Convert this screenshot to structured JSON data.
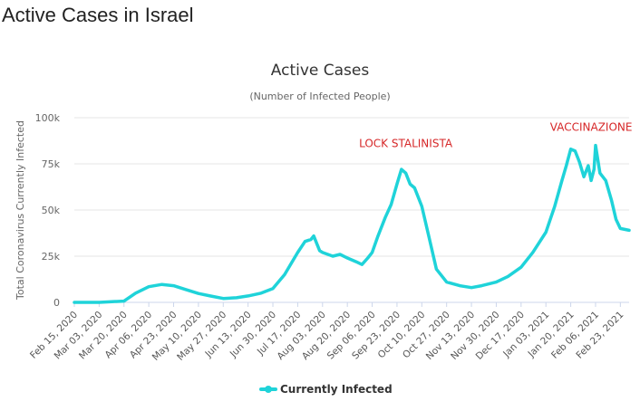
{
  "page": {
    "title": "Active Cases in Israel"
  },
  "chart_data": {
    "type": "line",
    "title": "Active Cases",
    "subtitle": "(Number of Infected People)",
    "xlabel": "",
    "ylabel": "Total Coronavirus Currently Infected",
    "ylim": [
      0,
      100000
    ],
    "y_ticks": [
      0,
      25000,
      50000,
      75000,
      100000
    ],
    "y_tick_labels": [
      "0",
      "25k",
      "50k",
      "75k",
      "100k"
    ],
    "x_tick_labels": [
      "Feb 15, 2020",
      "Mar 03, 2020",
      "Mar 20, 2020",
      "Apr 06, 2020",
      "Apr 23, 2020",
      "May 10, 2020",
      "May 27, 2020",
      "Jun 13, 2020",
      "Jun 30, 2020",
      "Jul 17, 2020",
      "Aug 03, 2020",
      "Aug 20, 2020",
      "Sep 06, 2020",
      "Sep 23, 2020",
      "Oct 10, 2020",
      "Oct 27, 2020",
      "Nov 13, 2020",
      "Nov 30, 2020",
      "Dec 17, 2020",
      "Jan 03, 2021",
      "Jan 20, 2021",
      "Feb 06, 2021",
      "Feb 23, 2021"
    ],
    "grid": true,
    "legend": "bottom",
    "colors": {
      "line": "#1fd3d9",
      "annotation": "#d62728",
      "grid": "#e6e6e6"
    },
    "series": [
      {
        "name": "Currently Infected",
        "x": [
          "Feb 15, 2020",
          "Mar 03, 2020",
          "Mar 20, 2020",
          "Mar 28, 2020",
          "Apr 06, 2020",
          "Apr 15, 2020",
          "Apr 23, 2020",
          "May 01, 2020",
          "May 10, 2020",
          "May 18, 2020",
          "May 27, 2020",
          "Jun 05, 2020",
          "Jun 13, 2020",
          "Jun 22, 2020",
          "Jun 30, 2020",
          "Jul 08, 2020",
          "Jul 17, 2020",
          "Jul 22, 2020",
          "Jul 26, 2020",
          "Jul 28, 2020",
          "Jul 30, 2020",
          "Aug 01, 2020",
          "Aug 03, 2020",
          "Aug 10, 2020",
          "Aug 15, 2020",
          "Aug 20, 2020",
          "Aug 26, 2020",
          "Aug 30, 2020",
          "Sep 03, 2020",
          "Sep 06, 2020",
          "Sep 10, 2020",
          "Sep 15, 2020",
          "Sep 19, 2020",
          "Sep 23, 2020",
          "Sep 26, 2020",
          "Sep 29, 2020",
          "Oct 02, 2020",
          "Oct 05, 2020",
          "Oct 10, 2020",
          "Oct 15, 2020",
          "Oct 20, 2020",
          "Oct 27, 2020",
          "Nov 05, 2020",
          "Nov 13, 2020",
          "Nov 20, 2020",
          "Nov 30, 2020",
          "Dec 08, 2020",
          "Dec 17, 2020",
          "Dec 25, 2020",
          "Jan 03, 2021",
          "Jan 09, 2021",
          "Jan 14, 2021",
          "Jan 17, 2021",
          "Jan 20, 2021",
          "Jan 23, 2021",
          "Jan 26, 2021",
          "Jan 29, 2021",
          "Feb 01, 2021",
          "Feb 03, 2021",
          "Feb 05, 2021",
          "Feb 06, 2021",
          "Feb 09, 2021",
          "Feb 13, 2021",
          "Feb 17, 2021",
          "Feb 20, 2021",
          "Feb 23, 2021",
          "Mar 01, 2021"
        ],
        "values": [
          0,
          0,
          700,
          5000,
          8500,
          9700,
          9000,
          7000,
          4800,
          3500,
          2100,
          2500,
          3500,
          5000,
          7500,
          15000,
          27000,
          33000,
          34000,
          36000,
          32000,
          28000,
          27000,
          25000,
          26000,
          24000,
          22000,
          20500,
          24000,
          27000,
          36000,
          46000,
          53000,
          64000,
          72000,
          70000,
          64000,
          62000,
          52000,
          35000,
          18000,
          11000,
          9000,
          8000,
          9000,
          11000,
          14000,
          19000,
          27000,
          38000,
          52000,
          66000,
          74000,
          83000,
          82000,
          76000,
          68000,
          74000,
          66000,
          72000,
          85000,
          70000,
          66000,
          55000,
          45000,
          40000,
          39000
        ]
      }
    ],
    "annotations": [
      {
        "text": "LOCK STALINISTA",
        "x": "Sep 29, 2020",
        "y": 84000
      },
      {
        "text": "VACCINAZIONE",
        "x": "Feb 03, 2021",
        "y": 93000
      }
    ]
  }
}
